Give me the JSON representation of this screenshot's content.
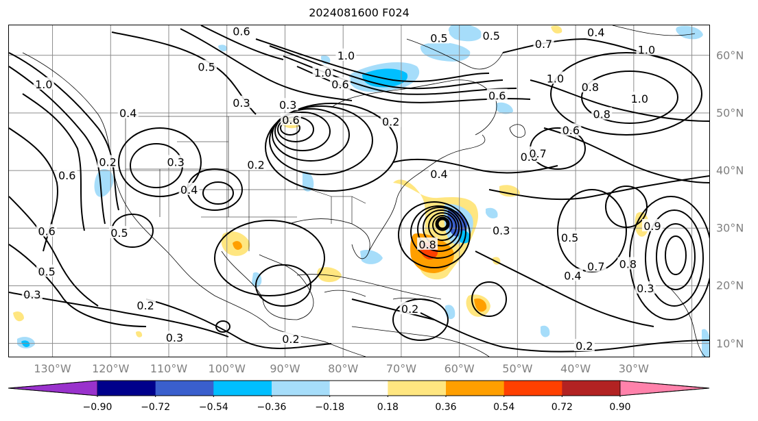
{
  "title": "2024081600 F024",
  "lon_labels": [
    "130°W",
    "120°W",
    "110°W",
    "100°W",
    "90°W",
    "80°W",
    "70°W",
    "60°W",
    "50°W",
    "40°W",
    "30°W"
  ],
  "lat_labels": [
    "60°N",
    "50°N",
    "40°N",
    "30°N",
    "20°N",
    "10°N"
  ],
  "colorbar": {
    "ticks": [
      "−0.90",
      "−0.72",
      "−0.54",
      "−0.36",
      "−0.18",
      "0.18",
      "0.36",
      "0.54",
      "0.72",
      "0.90"
    ],
    "colors": [
      "#9932cc",
      "#00008b",
      "#3a5fcd",
      "#00bfff",
      "#a6ddfa",
      "#ffffff",
      "#ffe680",
      "#ff9f00",
      "#ff4000",
      "#b22222",
      "#ff82ab"
    ],
    "extend": "both"
  },
  "contour_labels": [
    {
      "text": "0.6",
      "lon": -97.5,
      "lat": 64.2
    },
    {
      "text": "1.0",
      "lon": -79.5,
      "lat": 60.0
    },
    {
      "text": "0.5",
      "lon": -63.5,
      "lat": 63.0
    },
    {
      "text": "0.5",
      "lon": -54.5,
      "lat": 63.4
    },
    {
      "text": "0.4",
      "lon": -36.5,
      "lat": 64.0
    },
    {
      "text": "0.7",
      "lon": -45.5,
      "lat": 62.0
    },
    {
      "text": "1.0",
      "lon": -27.8,
      "lat": 61.0
    },
    {
      "text": "1.0",
      "lon": -83.5,
      "lat": 57.0
    },
    {
      "text": "0.6",
      "lon": -80.5,
      "lat": 55.0
    },
    {
      "text": "0.5",
      "lon": -103.5,
      "lat": 58.0
    },
    {
      "text": "0.3",
      "lon": -97.5,
      "lat": 51.8
    },
    {
      "text": "0.3",
      "lon": -89.5,
      "lat": 51.4
    },
    {
      "text": "0.6",
      "lon": -89.0,
      "lat": 48.8
    },
    {
      "text": "0.2",
      "lon": -71.8,
      "lat": 48.5
    },
    {
      "text": "1.0",
      "lon": -131.5,
      "lat": 55.0
    },
    {
      "text": "0.4",
      "lon": -117.0,
      "lat": 50.0
    },
    {
      "text": "0.2",
      "lon": -120.5,
      "lat": 41.5
    },
    {
      "text": "0.3",
      "lon": -108.8,
      "lat": 41.5
    },
    {
      "text": "0.4",
      "lon": -106.5,
      "lat": 36.7
    },
    {
      "text": "0.2",
      "lon": -95.0,
      "lat": 41.0
    },
    {
      "text": "0.4",
      "lon": -63.5,
      "lat": 39.4
    },
    {
      "text": "0.6",
      "lon": -127.5,
      "lat": 39.2
    },
    {
      "text": "0.6",
      "lon": -131.0,
      "lat": 29.5
    },
    {
      "text": "0.5",
      "lon": -118.5,
      "lat": 29.2
    },
    {
      "text": "0.5",
      "lon": -131.0,
      "lat": 22.5
    },
    {
      "text": "0.3",
      "lon": -133.5,
      "lat": 18.5
    },
    {
      "text": "0.2",
      "lon": -114.0,
      "lat": 16.6
    },
    {
      "text": "0.3",
      "lon": -109.0,
      "lat": 11.0
    },
    {
      "text": "0.2",
      "lon": -89.0,
      "lat": 10.8
    },
    {
      "text": "0.2",
      "lon": -68.5,
      "lat": 16.0
    },
    {
      "text": "0.8",
      "lon": -65.5,
      "lat": 27.2
    },
    {
      "text": "0.3",
      "lon": -52.8,
      "lat": 29.6
    },
    {
      "text": "0.4",
      "lon": -40.5,
      "lat": 21.8
    },
    {
      "text": "0.5",
      "lon": -41.0,
      "lat": 28.4
    },
    {
      "text": "0.7",
      "lon": -36.5,
      "lat": 23.4
    },
    {
      "text": "0.8",
      "lon": -31.0,
      "lat": 23.8
    },
    {
      "text": "0.9",
      "lon": -26.8,
      "lat": 30.4
    },
    {
      "text": "0.3",
      "lon": -28.0,
      "lat": 19.6
    },
    {
      "text": "0.2",
      "lon": -38.5,
      "lat": 9.6
    },
    {
      "text": "0.6",
      "lon": -53.5,
      "lat": 53.0
    },
    {
      "text": "1.0",
      "lon": -43.5,
      "lat": 56.0
    },
    {
      "text": "0.8",
      "lon": -37.5,
      "lat": 54.5
    },
    {
      "text": "0.8",
      "lon": -35.5,
      "lat": 49.8
    },
    {
      "text": "1.0",
      "lon": -29.0,
      "lat": 52.5
    },
    {
      "text": "0.6",
      "lon": -40.8,
      "lat": 47.0
    },
    {
      "text": "0.8",
      "lon": -48.0,
      "lat": 42.4
    },
    {
      "text": "0.7",
      "lon": -46.5,
      "lat": 43.0
    }
  ]
}
